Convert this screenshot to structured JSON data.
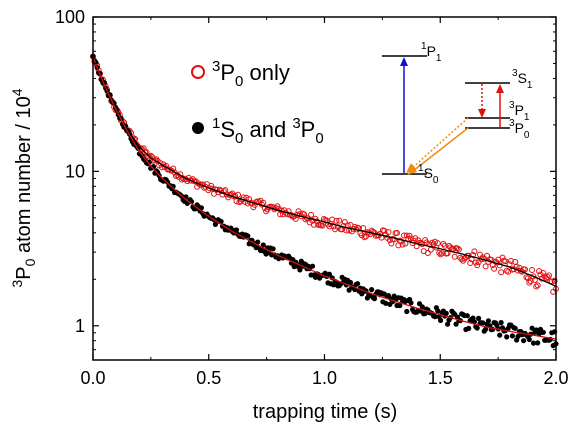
{
  "chart_data": {
    "type": "scatter",
    "xlabel": "trapping time (s)",
    "ylabel": {
      "pre_sup": "3",
      "base": "P",
      "sub": "0",
      "mid": " atom number / 10",
      "sup": "4"
    },
    "xlim": [
      0.0,
      2.0
    ],
    "ylim": [
      0.6,
      100
    ],
    "yscale": "log",
    "x_ticks": [
      "0.0",
      "0.5",
      "1.0",
      "1.5",
      "2.0"
    ],
    "x_tick_values": [
      0.0,
      0.5,
      1.0,
      1.5,
      2.0
    ],
    "y_ticks": [
      "1",
      "10",
      "100"
    ],
    "y_tick_values": [
      1,
      10,
      100
    ],
    "grid": false,
    "legend_position": "upper-center",
    "series": [
      {
        "legend": {
          "sup": "3",
          "base": "P",
          "sub": "0",
          "rest": " only"
        },
        "marker": "open-circle",
        "color": "#e01010",
        "x": [
          0.0,
          0.05,
          0.1,
          0.15,
          0.2,
          0.25,
          0.3,
          0.4,
          0.5,
          0.6,
          0.7,
          0.8,
          0.9,
          1.0,
          1.1,
          1.2,
          1.3,
          1.4,
          1.5,
          1.6,
          1.7,
          1.8,
          1.9,
          2.0
        ],
        "y": [
          55,
          36,
          25,
          18.5,
          14.5,
          12.2,
          11.0,
          9.0,
          7.8,
          6.9,
          6.2,
          5.6,
          5.1,
          4.7,
          4.3,
          4.0,
          3.7,
          3.4,
          3.15,
          2.9,
          2.65,
          2.4,
          2.1,
          1.8
        ],
        "fit_color": "#000000"
      },
      {
        "legend": {
          "sup": "1",
          "base": "S",
          "sub": "0",
          "rest": " and ",
          "sup2": "3",
          "base2": "P",
          "sub2": "0"
        },
        "marker": "filled-circle",
        "color": "#000000",
        "x": [
          0.0,
          0.05,
          0.1,
          0.15,
          0.2,
          0.25,
          0.3,
          0.4,
          0.5,
          0.6,
          0.7,
          0.8,
          0.9,
          1.0,
          1.1,
          1.2,
          1.3,
          1.4,
          1.5,
          1.6,
          1.7,
          1.8,
          1.9,
          2.0
        ],
        "y": [
          55,
          36,
          25,
          18.0,
          13.5,
          10.8,
          9.0,
          6.6,
          5.1,
          4.1,
          3.4,
          2.85,
          2.45,
          2.1,
          1.85,
          1.62,
          1.45,
          1.3,
          1.18,
          1.07,
          0.98,
          0.92,
          0.87,
          0.82
        ],
        "fit_color": "#d01010"
      }
    ],
    "inset": {
      "levels": {
        "p1": {
          "base": "P",
          "pre": "1",
          "sub": "1"
        },
        "s1": {
          "base": "S",
          "pre": "3",
          "sub": "1"
        },
        "p1t": {
          "base": "P",
          "pre": "3",
          "sub": "1"
        },
        "p0": {
          "base": "P",
          "pre": "3",
          "sub": "0"
        },
        "s0": {
          "base": "S",
          "pre": "1",
          "sub": "0"
        }
      },
      "colors": {
        "blue_transition": "#1010d0",
        "red_transition": "#e01010",
        "orange_transition": "#f08a10"
      }
    }
  }
}
